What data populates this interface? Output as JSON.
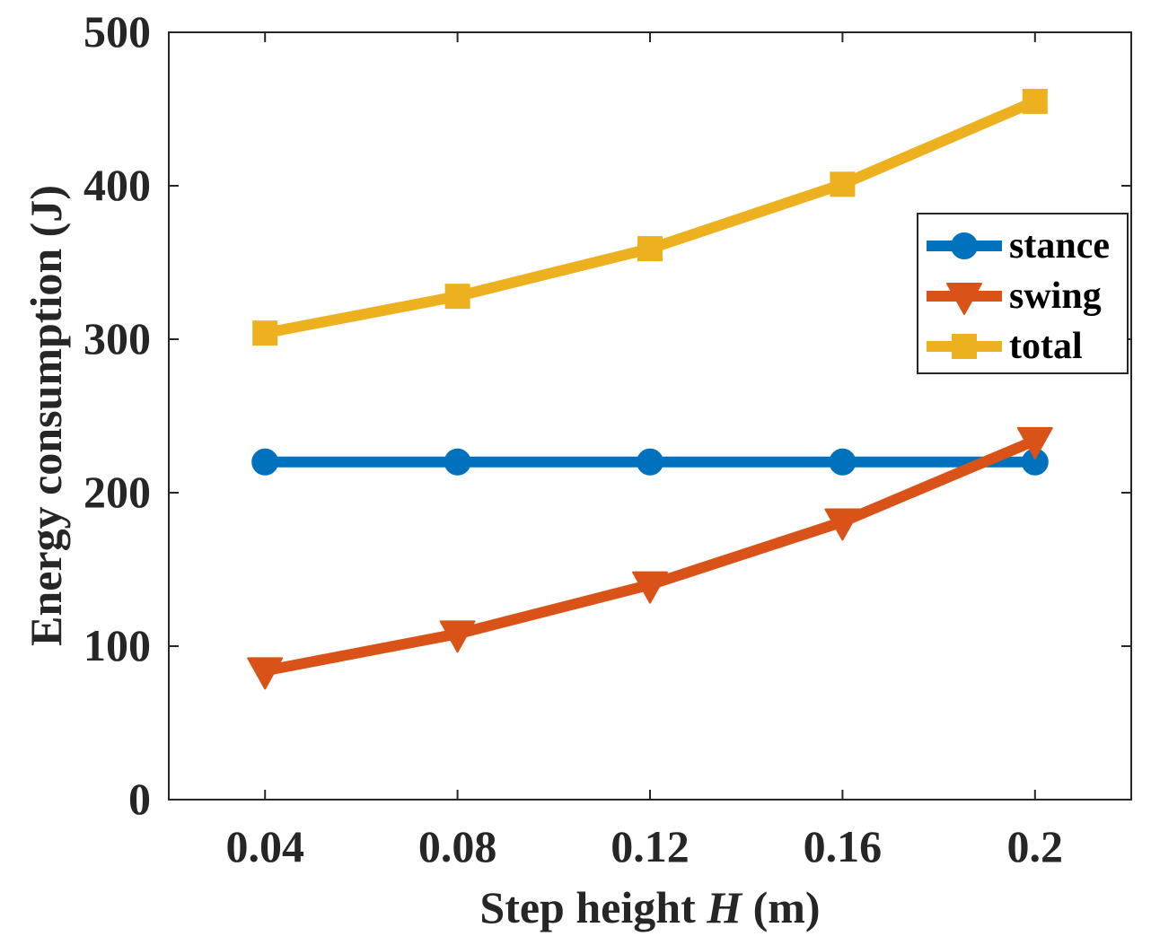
{
  "chart_data": {
    "type": "line",
    "x": [
      0.04,
      0.08,
      0.12,
      0.16,
      0.2
    ],
    "x_tick_labels": [
      "0.04",
      "0.08",
      "0.12",
      "0.16",
      "0.2"
    ],
    "y_ticks": [
      0,
      100,
      200,
      300,
      400,
      500
    ],
    "y_tick_labels": [
      "0",
      "100",
      "200",
      "300",
      "400",
      "500"
    ],
    "xlim": [
      0.02,
      0.22
    ],
    "ylim": [
      0,
      500
    ],
    "xlabel_prefix": "Step height ",
    "xlabel_var": "H",
    "xlabel_suffix": " (m)",
    "ylabel": "Energy consumption (J)",
    "legend_position": "top-right",
    "series": [
      {
        "name": "stance",
        "marker": "circle",
        "color": "#0072BD",
        "values": [
          220,
          220,
          220,
          220,
          220
        ]
      },
      {
        "name": "swing",
        "marker": "triangle-down",
        "color": "#D95319",
        "values": [
          84,
          108,
          140,
          181,
          234
        ]
      },
      {
        "name": "total",
        "marker": "square",
        "color": "#EDB120",
        "values": [
          304,
          328,
          359,
          401,
          455
        ]
      }
    ]
  }
}
